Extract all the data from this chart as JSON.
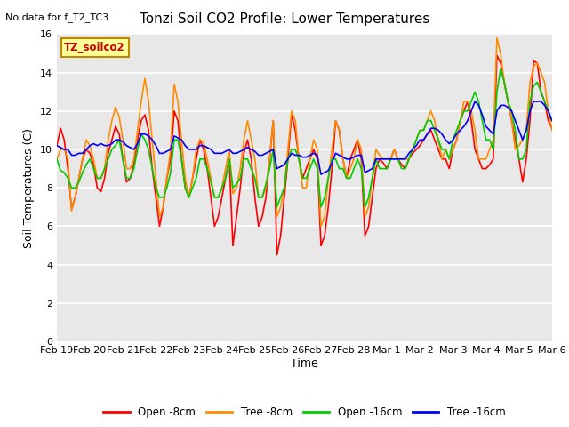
{
  "title": "Tonzi Soil CO2 Profile: Lower Temperatures",
  "subtitle": "No data for f_T2_TC3",
  "ylabel": "Soil Temperatures (C)",
  "xlabel": "Time",
  "ylim": [
    0,
    16
  ],
  "yticks": [
    0,
    2,
    4,
    6,
    8,
    10,
    12,
    14,
    16
  ],
  "fig_bg_color": "#ffffff",
  "inner_bg_color": "#e8e8e8",
  "grid_color": "#ffffff",
  "series_colors": {
    "open_8cm": "#ff0000",
    "tree_8cm": "#ff8c00",
    "open_16cm": "#00cc00",
    "tree_16cm": "#0000ff"
  },
  "x_tick_labels": [
    "Feb 19",
    "Feb 20",
    "Feb 21",
    "Feb 22",
    "Feb 23",
    "Feb 24",
    "Feb 25",
    "Feb 26",
    "Feb 27",
    "Feb 28",
    "Mar 1",
    "Mar 2",
    "Mar 3",
    "Mar 4",
    "Mar 5",
    "Mar 6"
  ],
  "open_8cm": [
    10.2,
    11.1,
    10.5,
    9.0,
    6.9,
    7.5,
    8.5,
    9.5,
    10.0,
    9.8,
    9.2,
    8.0,
    7.8,
    8.5,
    9.8,
    10.5,
    11.2,
    10.8,
    9.5,
    8.3,
    8.5,
    9.2,
    10.5,
    11.5,
    11.8,
    11.0,
    9.0,
    7.5,
    6.0,
    7.0,
    8.5,
    9.5,
    12.0,
    11.5,
    9.5,
    8.0,
    7.5,
    8.5,
    9.5,
    10.5,
    10.0,
    9.0,
    7.5,
    6.0,
    6.5,
    7.5,
    8.5,
    9.5,
    5.0,
    6.5,
    8.0,
    9.8,
    10.5,
    9.5,
    7.5,
    6.0,
    6.5,
    7.5,
    9.5,
    11.5,
    4.5,
    5.5,
    7.5,
    9.5,
    11.8,
    11.0,
    9.5,
    8.5,
    9.0,
    9.5,
    10.0,
    9.5,
    5.0,
    5.5,
    7.0,
    9.0,
    11.5,
    11.0,
    9.5,
    8.5,
    9.5,
    10.0,
    10.5,
    9.5,
    5.5,
    6.0,
    7.5,
    9.0,
    9.5,
    9.3,
    9.0,
    9.5,
    10.0,
    9.5,
    9.2,
    9.0,
    9.5,
    9.8,
    10.0,
    10.2,
    10.5,
    10.8,
    11.0,
    10.5,
    10.0,
    9.5,
    9.5,
    9.0,
    10.0,
    10.5,
    11.5,
    12.0,
    12.5,
    11.5,
    10.0,
    9.5,
    9.0,
    9.0,
    9.2,
    9.5,
    14.9,
    14.5,
    13.5,
    12.5,
    11.5,
    10.5,
    9.5,
    8.3,
    9.5,
    11.5,
    14.6,
    14.5,
    13.0,
    12.5,
    11.5,
    11.1
  ],
  "tree_8cm": [
    9.5,
    10.0,
    10.0,
    9.5,
    6.8,
    7.5,
    8.5,
    9.5,
    10.5,
    10.2,
    9.5,
    8.5,
    8.5,
    9.0,
    10.5,
    11.5,
    12.2,
    11.7,
    10.5,
    9.0,
    9.0,
    9.5,
    11.0,
    12.5,
    13.7,
    12.5,
    10.5,
    8.5,
    6.5,
    7.0,
    8.5,
    10.0,
    13.4,
    12.5,
    10.5,
    8.5,
    7.5,
    8.5,
    10.0,
    10.5,
    10.4,
    9.5,
    8.5,
    7.5,
    7.5,
    8.0,
    9.0,
    10.0,
    7.7,
    8.0,
    9.0,
    10.5,
    11.5,
    10.5,
    9.5,
    7.5,
    7.5,
    8.0,
    9.5,
    11.5,
    6.5,
    7.0,
    8.0,
    10.0,
    12.0,
    11.5,
    9.5,
    8.0,
    8.0,
    9.5,
    10.5,
    10.0,
    6.0,
    6.5,
    8.5,
    10.0,
    11.5,
    11.0,
    9.5,
    8.5,
    9.0,
    9.5,
    10.5,
    10.0,
    6.5,
    7.0,
    8.5,
    10.0,
    9.7,
    9.5,
    9.5,
    9.5,
    10.0,
    9.5,
    9.5,
    9.5,
    9.5,
    10.0,
    10.5,
    11.0,
    11.0,
    11.5,
    12.0,
    11.5,
    10.5,
    9.5,
    10.0,
    9.5,
    10.0,
    10.5,
    11.5,
    12.5,
    12.5,
    12.0,
    11.0,
    9.5,
    9.5,
    9.5,
    10.0,
    10.5,
    15.8,
    15.0,
    13.5,
    12.5,
    11.5,
    10.0,
    10.2,
    10.5,
    11.0,
    13.5,
    14.3,
    14.5,
    14.0,
    13.5,
    12.0,
    11.0
  ],
  "open_16cm": [
    9.5,
    8.9,
    8.8,
    8.5,
    8.0,
    8.0,
    8.3,
    8.8,
    9.2,
    9.5,
    9.0,
    8.5,
    8.5,
    9.0,
    9.5,
    10.0,
    10.2,
    10.5,
    9.5,
    8.5,
    8.5,
    9.0,
    10.0,
    10.8,
    10.5,
    10.0,
    9.0,
    8.0,
    7.5,
    7.5,
    8.0,
    8.8,
    10.5,
    10.5,
    9.5,
    8.0,
    7.5,
    8.0,
    8.5,
    9.5,
    9.5,
    9.0,
    8.3,
    7.5,
    7.5,
    8.0,
    8.5,
    9.5,
    8.0,
    8.2,
    8.5,
    9.5,
    9.5,
    9.0,
    8.5,
    7.5,
    7.5,
    8.2,
    9.0,
    10.0,
    7.0,
    7.5,
    8.0,
    9.5,
    10.0,
    10.0,
    9.5,
    8.5,
    8.5,
    9.0,
    9.5,
    9.0,
    7.0,
    7.5,
    8.5,
    9.5,
    9.5,
    9.0,
    9.0,
    8.5,
    8.5,
    9.0,
    9.5,
    9.0,
    7.0,
    7.5,
    8.5,
    9.5,
    9.0,
    9.0,
    9.0,
    9.5,
    9.5,
    9.5,
    9.0,
    9.0,
    9.5,
    10.0,
    10.5,
    11.0,
    11.0,
    11.5,
    11.5,
    11.0,
    10.5,
    10.0,
    10.0,
    9.5,
    10.5,
    11.0,
    11.5,
    12.0,
    12.0,
    12.5,
    13.0,
    12.5,
    11.5,
    10.5,
    10.5,
    10.0,
    13.0,
    14.2,
    13.5,
    12.5,
    12.0,
    11.0,
    9.5,
    9.5,
    10.0,
    12.5,
    13.3,
    13.5,
    13.0,
    12.5,
    12.0,
    11.5
  ],
  "tree_16cm": [
    10.2,
    10.1,
    10.0,
    10.0,
    9.7,
    9.7,
    9.8,
    9.8,
    10.0,
    10.2,
    10.3,
    10.2,
    10.3,
    10.2,
    10.2,
    10.3,
    10.5,
    10.5,
    10.4,
    10.2,
    10.1,
    10.0,
    10.3,
    10.8,
    10.8,
    10.7,
    10.5,
    10.2,
    9.8,
    9.8,
    9.9,
    10.0,
    10.7,
    10.6,
    10.5,
    10.2,
    10.0,
    10.0,
    10.0,
    10.2,
    10.2,
    10.1,
    10.0,
    9.8,
    9.8,
    9.8,
    9.9,
    10.0,
    9.8,
    9.8,
    9.9,
    10.0,
    10.1,
    10.0,
    9.9,
    9.7,
    9.7,
    9.8,
    9.9,
    10.0,
    9.0,
    9.1,
    9.2,
    9.5,
    9.8,
    9.7,
    9.7,
    9.6,
    9.6,
    9.7,
    9.8,
    9.7,
    8.7,
    8.8,
    8.9,
    9.3,
    9.8,
    9.7,
    9.6,
    9.5,
    9.5,
    9.6,
    9.7,
    9.7,
    8.8,
    8.9,
    9.0,
    9.5,
    9.5,
    9.5,
    9.5,
    9.5,
    9.5,
    9.5,
    9.5,
    9.5,
    9.8,
    10.0,
    10.2,
    10.5,
    10.5,
    10.8,
    11.1,
    11.1,
    11.0,
    10.8,
    10.5,
    10.3,
    10.5,
    10.8,
    11.0,
    11.2,
    11.5,
    12.0,
    12.5,
    12.3,
    11.8,
    11.2,
    11.0,
    10.8,
    12.0,
    12.3,
    12.3,
    12.2,
    12.0,
    11.5,
    11.0,
    10.5,
    11.0,
    12.0,
    12.5,
    12.5,
    12.5,
    12.3,
    12.0,
    11.5
  ]
}
